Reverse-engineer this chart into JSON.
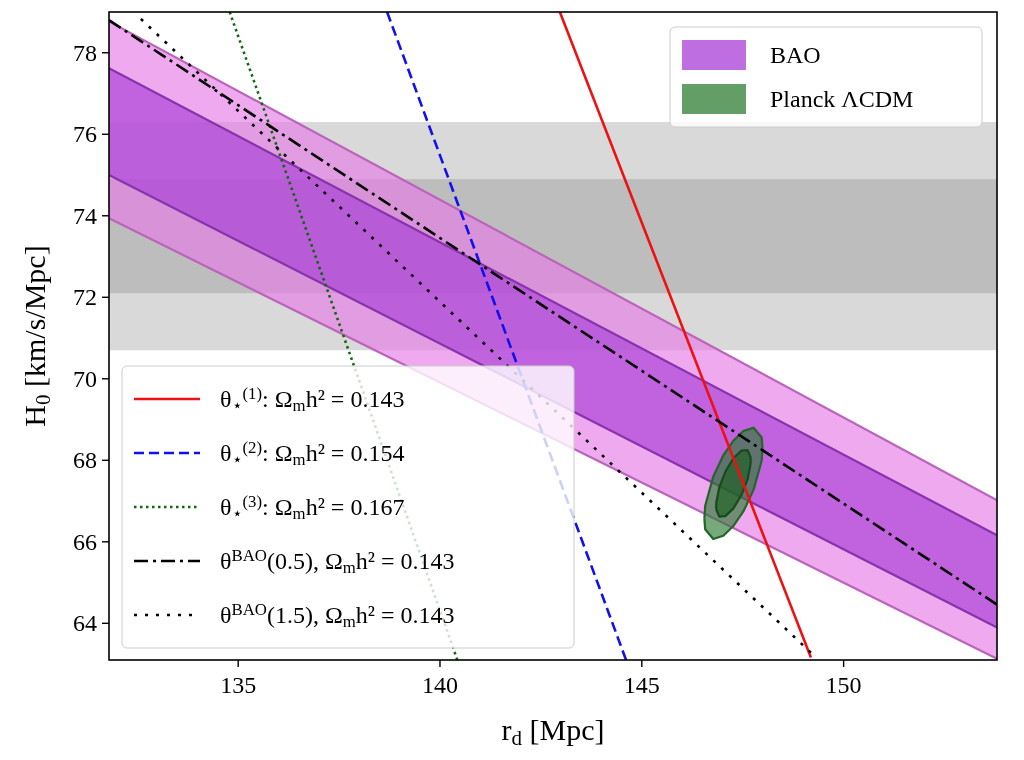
{
  "chart_data": {
    "type": "line",
    "xlabel": "r$_{d}$ [Mpc]",
    "ylabel": "H$_{0}$ [km/s/Mpc]",
    "xlim": [
      131.8,
      153.8
    ],
    "ylim": [
      63.1,
      79
    ],
    "xticks": [
      135,
      140,
      145,
      150
    ],
    "yticks": [
      64,
      66,
      68,
      70,
      72,
      74,
      76,
      78
    ],
    "grid": false,
    "legend": [
      "top right",
      "bottom left"
    ],
    "bands": [
      {
        "axis": "y",
        "from": 70.7,
        "to": 76.3,
        "color": "#d9d9d9"
      },
      {
        "axis": "y",
        "from": 72.1,
        "to": 74.9,
        "color": "#bdbdbd"
      }
    ],
    "series": [
      {
        "type": "area",
        "color": "#e67ce6",
        "x": [
          131.8,
          153.8
        ],
        "values": [
          78.77,
          67.02
        ]
      },
      {
        "color": "#ba64ba",
        "line_style": "solid",
        "x": [
          131.8,
          153.8
        ],
        "values": [
          73.94,
          63.13
        ]
      },
      {
        "type": "area",
        "name": "BAO",
        "color": "#a83ed6",
        "x": [
          131.8,
          153.8
        ],
        "values": [
          77.62,
          66.16
        ]
      },
      {
        "color": "#8832ad",
        "line_style": "solid",
        "x": [
          131.8,
          153.8
        ],
        "values": [
          75.0,
          63.9
        ]
      },
      {
        "type": "area",
        "name": "Planck ΛCDM",
        "color": "#2e7d32",
        "x": [
          146.55,
          146.57,
          146.77,
          147.02,
          147.27,
          147.52,
          147.77,
          147.97,
          147.99
        ],
        "values": [
          66.57,
          66.88,
          67.6,
          68.12,
          68.48,
          68.72,
          68.8,
          68.56,
          68.3
        ]
      },
      {
        "color": "#256528",
        "line_style": "solid",
        "x": [
          146.55,
          146.57,
          146.77,
          147.02,
          147.27,
          147.52,
          147.77,
          147.97,
          147.99
        ],
        "values": [
          66.57,
          66.31,
          66.07,
          66.15,
          66.39,
          66.75,
          67.28,
          67.99,
          68.3
        ]
      },
      {
        "type": "area",
        "color": "#1b5e20",
        "x": [
          146.84,
          146.85,
          146.92,
          147.07,
          147.27,
          147.47,
          147.62,
          147.69,
          147.7
        ],
        "values": [
          66.88,
          66.99,
          67.34,
          67.72,
          68.05,
          68.24,
          68.25,
          68.09,
          67.99
        ]
      },
      {
        "color": "#164c1a",
        "line_style": "solid",
        "x": [
          146.84,
          146.85,
          146.92,
          147.07,
          147.27,
          147.47,
          147.62,
          147.69,
          147.7
        ],
        "values": [
          66.88,
          66.78,
          66.62,
          66.63,
          66.82,
          67.15,
          67.53,
          67.88,
          67.99
        ]
      },
      {
        "name": "θ$_{⋆}$$^{(1)}$: Ω$_{m}$h² = 0.143",
        "color": "#ee1111",
        "line_style": "solid",
        "x": [
          142.97,
          149.19
        ],
        "values": [
          79,
          63.16
        ]
      },
      {
        "name": "θ$_{⋆}$$^{(2)}$: Ω$_{m}$h² = 0.154",
        "color": "#1111ee",
        "line_style": "dashed",
        "x": [
          138.69,
          144.61
        ],
        "values": [
          79,
          63.1
        ]
      },
      {
        "name": "θ$_{⋆}$$^{(3)}$: Ω$_{m}$h² = 0.167",
        "color": "#116611",
        "line_style": "dotted",
        "x": [
          134.79,
          140.43
        ],
        "values": [
          79,
          63.1
        ]
      },
      {
        "name": "θ$^{BAO}$(0.5), Ω$_{m}$h² = 0.143",
        "color": "#000000",
        "line_style": "dashdot",
        "x": [
          131.8,
          153.8
        ],
        "values": [
          78.8,
          64.46
        ]
      },
      {
        "name": "θ$^{BAO}$(1.5), Ω$_{m}$h² = 0.143",
        "color": "#000000",
        "line_style": "dashdotdot",
        "x": [
          132.59,
          149.19
        ],
        "values": [
          78.83,
          63.28
        ]
      }
    ]
  }
}
